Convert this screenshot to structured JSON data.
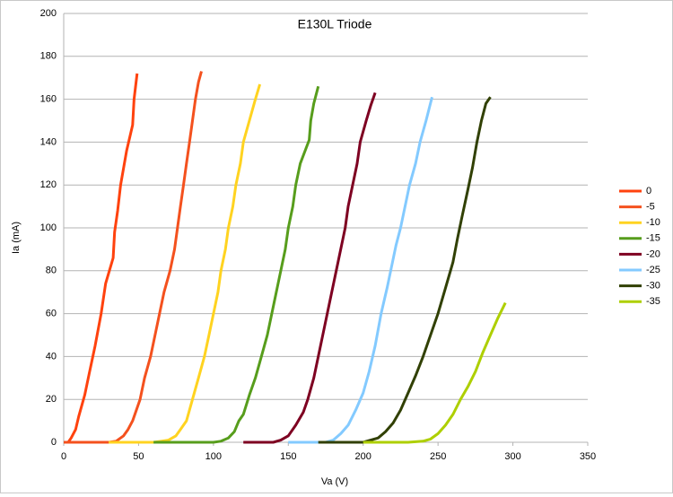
{
  "chart_data": {
    "type": "line",
    "title": "E130L Triode",
    "x_label": "Va (V)",
    "y_label": "Ia (mA)",
    "xlim": [
      0,
      350
    ],
    "xticks": [
      0,
      50,
      100,
      150,
      200,
      250,
      300,
      350
    ],
    "ylim": [
      0,
      200
    ],
    "yticks": [
      0,
      20,
      40,
      60,
      80,
      100,
      120,
      140,
      160,
      180,
      200
    ],
    "grid": true,
    "legend": "right",
    "series": [
      {
        "name": "0",
        "color": "#ff420e",
        "x": [
          3,
          5,
          8,
          10,
          14,
          17,
          21,
          25,
          28,
          33,
          34,
          36,
          38,
          42,
          46,
          47,
          49
        ],
        "values": [
          0,
          2,
          6,
          12,
          22,
          32,
          45,
          60,
          74,
          86,
          98,
          108,
          120,
          136,
          148,
          160,
          172
        ]
      },
      {
        "name": "-5",
        "color": "#f4511e",
        "x": [
          0,
          20,
          30,
          35,
          40,
          43,
          46,
          51,
          54,
          58,
          61,
          64,
          67,
          71,
          74,
          76,
          78,
          80,
          82,
          84,
          86,
          88,
          90,
          92
        ],
        "values": [
          0,
          0,
          0,
          0.5,
          3,
          6,
          10,
          20,
          30,
          40,
          50,
          60,
          70,
          80,
          90,
          100,
          110,
          120,
          130,
          140,
          150,
          160,
          168,
          173
        ]
      },
      {
        "name": "-10",
        "color": "#ffd320",
        "x": [
          30,
          50,
          60,
          65,
          70,
          75,
          78,
          82,
          86,
          90,
          94,
          97,
          100,
          103,
          105,
          108,
          110,
          113,
          115,
          118,
          120,
          124,
          128,
          131
        ],
        "values": [
          0,
          0,
          0,
          0.5,
          1,
          3,
          6,
          10,
          20,
          30,
          40,
          50,
          60,
          70,
          80,
          90,
          100,
          110,
          120,
          130,
          140,
          150,
          160,
          167
        ]
      },
      {
        "name": "-15",
        "color": "#579d1c",
        "x": [
          60,
          80,
          100,
          105,
          110,
          114,
          117,
          120,
          124,
          128,
          132,
          136,
          139,
          142,
          145,
          148,
          150,
          153,
          155,
          158,
          164,
          165,
          167,
          170
        ],
        "values": [
          0,
          0,
          0,
          0.5,
          2,
          5,
          10,
          13,
          22,
          30,
          40,
          50,
          60,
          70,
          80,
          90,
          100,
          110,
          120,
          130,
          141,
          150,
          158,
          166
        ]
      },
      {
        "name": "-20",
        "color": "#7e0021",
        "x": [
          120,
          140,
          145,
          150,
          155,
          160,
          163,
          167,
          170,
          173,
          176,
          179,
          182,
          185,
          188,
          190,
          193,
          196,
          198,
          202,
          205,
          208
        ],
        "values": [
          0,
          0,
          1,
          3,
          8,
          14,
          20,
          30,
          40,
          50,
          60,
          70,
          80,
          90,
          100,
          110,
          120,
          130,
          140,
          150,
          157,
          163
        ]
      },
      {
        "name": "-25",
        "color": "#83caff",
        "x": [
          150,
          175,
          180,
          185,
          190,
          195,
          200,
          204,
          208,
          212,
          216,
          219,
          222,
          225,
          228,
          231,
          235,
          238,
          242,
          246
        ],
        "values": [
          0,
          0,
          1,
          4,
          8,
          15,
          23,
          33,
          45,
          60,
          72,
          82,
          92,
          100,
          110,
          120,
          130,
          140,
          150,
          161
        ]
      },
      {
        "name": "-30",
        "color": "#314004",
        "x": [
          170,
          200,
          205,
          210,
          215,
          220,
          225,
          230,
          235,
          240,
          245,
          250,
          255,
          260,
          263,
          266,
          270,
          273,
          276,
          279,
          282,
          285
        ],
        "values": [
          0,
          0,
          1,
          2,
          5,
          9,
          15,
          23,
          31,
          40,
          50,
          60,
          72,
          84,
          95,
          105,
          118,
          128,
          140,
          150,
          158,
          161
        ]
      },
      {
        "name": "-35",
        "color": "#aecf00",
        "x": [
          200,
          230,
          240,
          245,
          250,
          255,
          260,
          265,
          270,
          275,
          280,
          285,
          290,
          295
        ],
        "values": [
          0,
          0,
          0.5,
          1.5,
          4,
          8,
          13,
          20,
          26,
          33,
          42,
          50,
          58,
          65
        ]
      }
    ]
  }
}
